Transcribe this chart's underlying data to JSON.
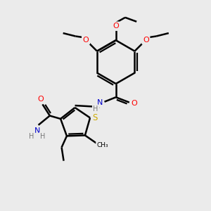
{
  "bg_color": "#ebebeb",
  "bond_color": "#000000",
  "bond_width": 1.8,
  "dbo": 0.08,
  "atom_colors": {
    "O": "#ff0000",
    "N": "#0000cc",
    "S": "#ccaa00",
    "H": "#777777",
    "C": "#000000"
  },
  "xlim": [
    0,
    10
  ],
  "ylim": [
    0,
    10
  ]
}
